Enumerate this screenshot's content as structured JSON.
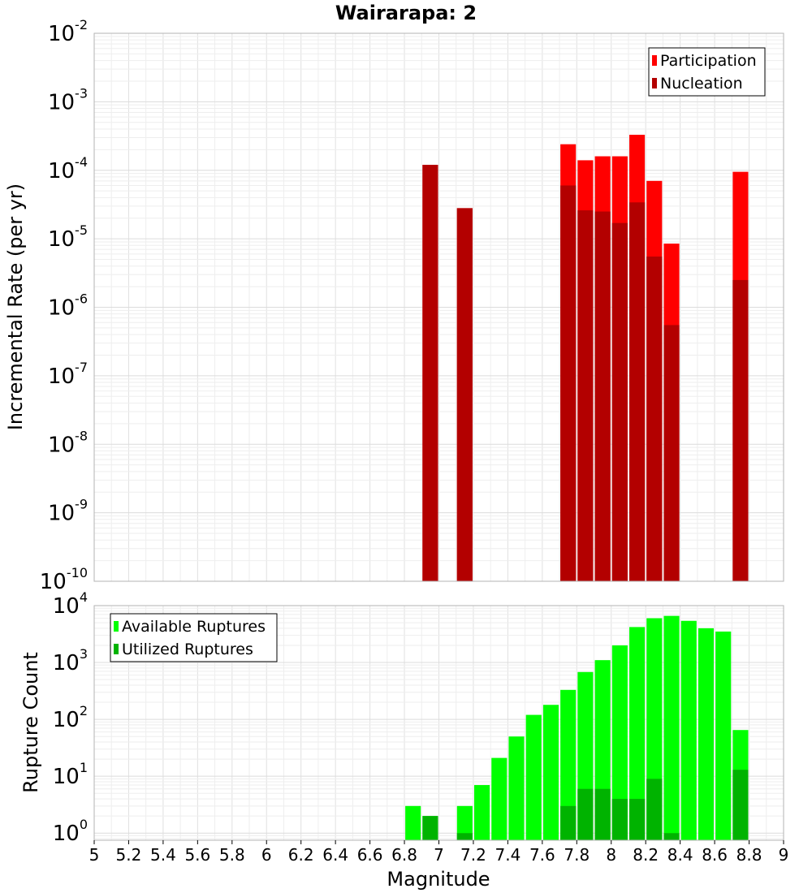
{
  "title": "Wairarapa: 2",
  "colors": {
    "participation": "#ff0000",
    "nucleation": "#b30000",
    "available": "#00ff00",
    "utilized": "#00b300",
    "grid": "#e6e6e6",
    "frame": "#b3b3b3"
  },
  "chart_data": [
    {
      "type": "bar",
      "ylabel": "Incremental Rate (per yr)",
      "xlabel": "",
      "xlim": [
        5,
        9
      ],
      "ylim": [
        1e-10,
        0.01
      ],
      "yscale": "log",
      "grid": true,
      "legend_position": "top-right",
      "ytick_labels": [
        {
          "base": "10",
          "exp": "-2",
          "value": 0.01
        },
        {
          "base": "10",
          "exp": "-3",
          "value": 0.001
        },
        {
          "base": "10",
          "exp": "-4",
          "value": 0.0001
        },
        {
          "base": "10",
          "exp": "-5",
          "value": 1e-05
        },
        {
          "base": "10",
          "exp": "-6",
          "value": 1e-06
        },
        {
          "base": "10",
          "exp": "-7",
          "value": 1e-07
        },
        {
          "base": "10",
          "exp": "-8",
          "value": 1e-08
        },
        {
          "base": "10",
          "exp": "-9",
          "value": 1e-09
        },
        {
          "base": "10",
          "exp": "-10",
          "value": 1e-10
        }
      ],
      "series": [
        {
          "name": "Participation",
          "color": "#ff0000",
          "x": [
            6.95,
            7.15,
            7.75,
            7.85,
            7.95,
            8.05,
            8.15,
            8.25,
            8.35,
            8.75
          ],
          "values": [
            0.00012,
            2.8e-05,
            0.00024,
            0.00014,
            0.00016,
            0.00016,
            0.00033,
            7e-05,
            8.5e-06,
            9.5e-05
          ]
        },
        {
          "name": "Nucleation",
          "color": "#b30000",
          "x": [
            6.95,
            7.15,
            7.75,
            7.85,
            7.95,
            8.05,
            8.15,
            8.25,
            8.35,
            8.75
          ],
          "values": [
            0.00012,
            2.8e-05,
            6e-05,
            2.6e-05,
            2.5e-05,
            1.7e-05,
            3.4e-05,
            5.5e-06,
            5.5e-07,
            2.5e-06
          ]
        }
      ]
    },
    {
      "type": "bar",
      "ylabel": "Rupture Count",
      "xlabel": "Magnitude",
      "xlim": [
        5,
        9
      ],
      "ylim": [
        0.75,
        10000
      ],
      "yscale": "log",
      "grid": true,
      "legend_position": "top-left",
      "xtick_labels": [
        "5",
        "5.2",
        "5.4",
        "5.6",
        "5.8",
        "6",
        "6.2",
        "6.4",
        "6.6",
        "6.8",
        "7",
        "7.2",
        "7.4",
        "7.6",
        "7.8",
        "8",
        "8.2",
        "8.4",
        "8.6",
        "8.8",
        "9"
      ],
      "ytick_labels": [
        {
          "base": "10",
          "exp": "4",
          "value": 10000
        },
        {
          "base": "10",
          "exp": "3",
          "value": 1000
        },
        {
          "base": "10",
          "exp": "2",
          "value": 100
        },
        {
          "base": "10",
          "exp": "1",
          "value": 10
        },
        {
          "base": "10",
          "exp": "0",
          "value": 1
        }
      ],
      "series": [
        {
          "name": "Available Ruptures",
          "color": "#00ff00",
          "x": [
            6.85,
            6.95,
            7.15,
            7.25,
            7.35,
            7.45,
            7.55,
            7.65,
            7.75,
            7.85,
            7.95,
            8.05,
            8.15,
            8.25,
            8.35,
            8.45,
            8.55,
            8.65,
            8.75
          ],
          "values": [
            3,
            2,
            3,
            7,
            21,
            50,
            120,
            180,
            330,
            680,
            1100,
            2000,
            4200,
            6000,
            6600,
            5400,
            4000,
            3500,
            65
          ]
        },
        {
          "name": "Utilized Ruptures",
          "color": "#00b300",
          "x": [
            6.95,
            7.15,
            7.75,
            7.85,
            7.95,
            8.05,
            8.15,
            8.25,
            8.35,
            8.75
          ],
          "values": [
            2,
            1,
            3,
            6,
            6,
            4,
            4,
            9,
            1,
            13
          ]
        }
      ]
    }
  ]
}
